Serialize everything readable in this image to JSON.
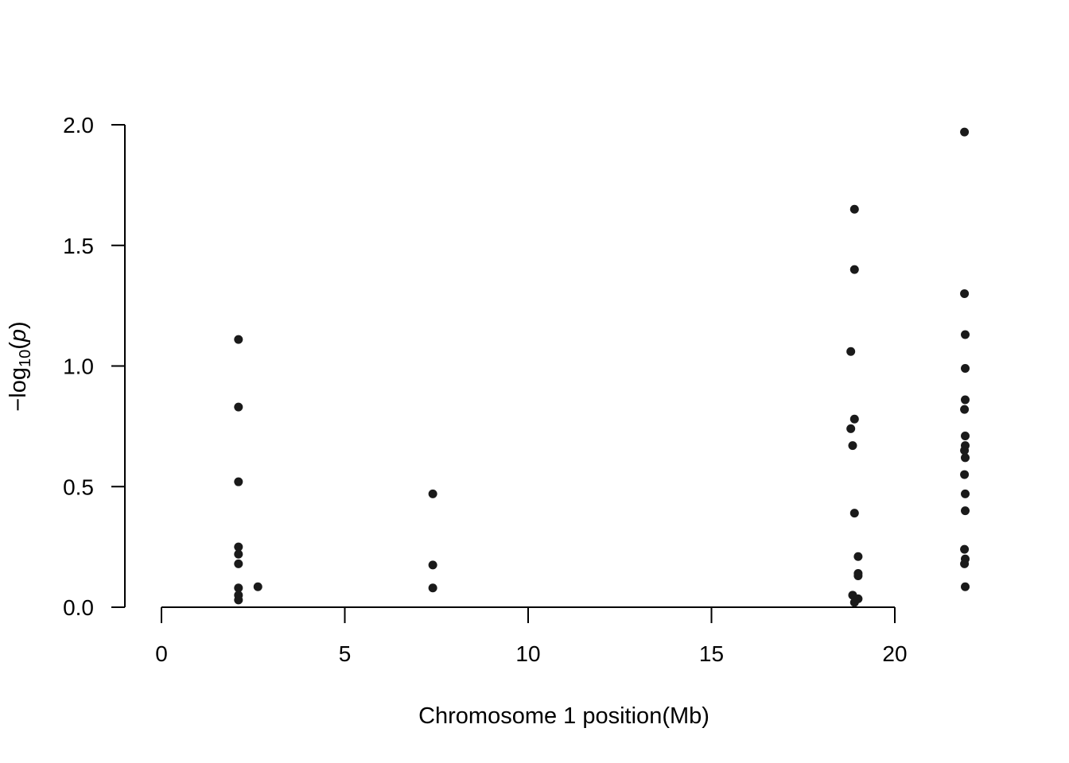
{
  "chart_data": {
    "type": "scatter",
    "title": "",
    "xlabel": "Chromosome 1 position(Mb)",
    "ylabel": {
      "prefix": "−log",
      "subscript": "10",
      "open": "(",
      "variable": "p",
      "close": ")"
    },
    "xlim": [
      0,
      20
    ],
    "ylim": [
      0,
      2
    ],
    "x_ticks": [
      0,
      5,
      10,
      15,
      20
    ],
    "y_ticks": [
      "0.0",
      "0.5",
      "1.0",
      "1.5",
      "2.0"
    ],
    "grid": false,
    "legend": "none",
    "point_color": "#1a1a1a",
    "series": [
      {
        "x": [
          2.1,
          2.1,
          2.1,
          2.1,
          2.1,
          2.1,
          2.1,
          2.1,
          2.1,
          2.63,
          7.4,
          7.4,
          7.4,
          18.9,
          18.9,
          18.8,
          18.9,
          18.8,
          18.85,
          18.9,
          19.0,
          19.0,
          19.0,
          18.85,
          19.0,
          18.9,
          21.9,
          21.9,
          21.92,
          21.92,
          21.92,
          21.9,
          21.92,
          21.92,
          21.9,
          21.92,
          21.9,
          21.92,
          21.92,
          21.9,
          21.92,
          21.9,
          21.92
        ],
        "y": [
          1.11,
          0.83,
          0.52,
          0.25,
          0.22,
          0.18,
          0.08,
          0.05,
          0.03,
          0.085,
          0.47,
          0.175,
          0.08,
          1.65,
          1.4,
          1.06,
          0.78,
          0.74,
          0.67,
          0.39,
          0.21,
          0.14,
          0.13,
          0.05,
          0.035,
          0.02,
          1.97,
          1.3,
          1.13,
          0.99,
          0.86,
          0.82,
          0.71,
          0.67,
          0.65,
          0.62,
          0.55,
          0.47,
          0.4,
          0.24,
          0.2,
          0.18,
          0.085
        ]
      }
    ]
  }
}
